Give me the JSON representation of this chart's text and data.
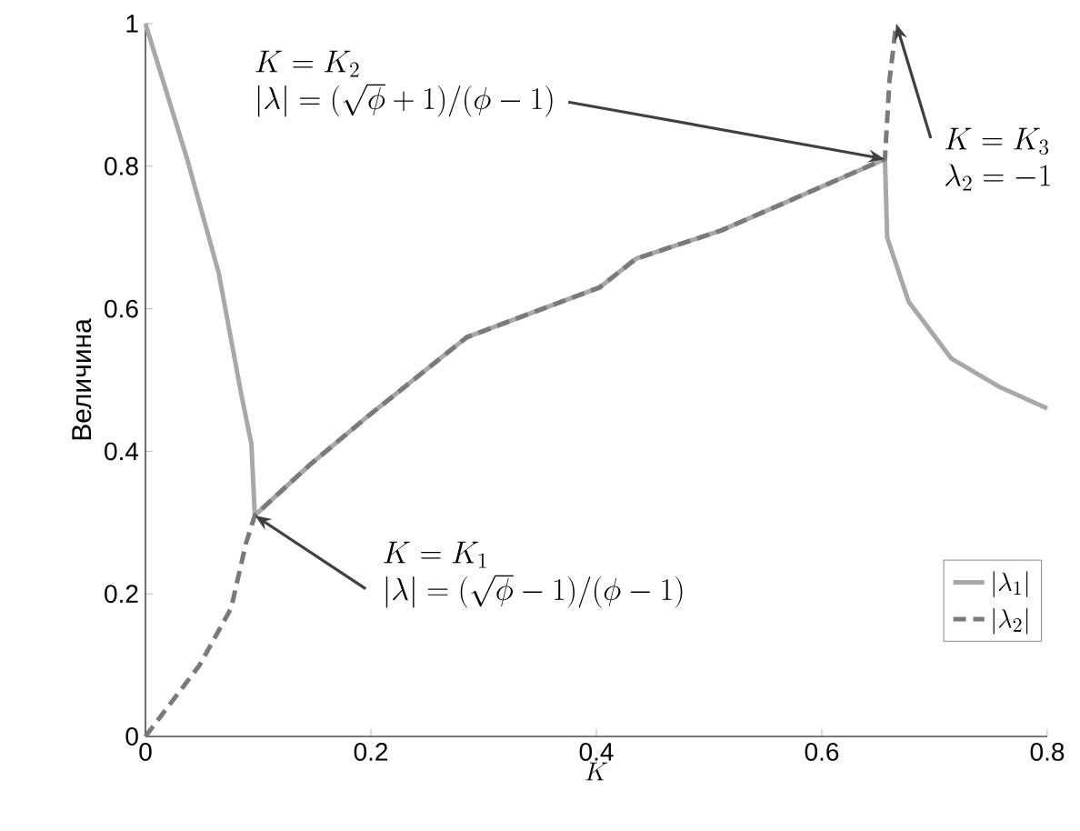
{
  "chart_data": {
    "type": "line",
    "xlabel": "K",
    "ylabel": "Величина",
    "xlim": [
      0,
      0.8
    ],
    "ylim": [
      0,
      1
    ],
    "xticks": [
      0,
      0.2,
      0.4,
      0.6,
      0.8
    ],
    "yticks": [
      0,
      0.2,
      0.4,
      0.6,
      0.8,
      1
    ],
    "legend": "bottom right",
    "series": [
      {
        "name": "|\\lambda_1|",
        "color": "#a8a8a8",
        "line_style": "solid",
        "x": [
          0,
          0.037,
          0.065,
          0.085,
          0.094,
          0.097,
          0.145,
          0.198,
          0.285,
          0.403,
          0.435,
          0.511,
          0.656,
          0.658,
          0.677,
          0.715,
          0.758,
          0.8
        ],
        "values": [
          1,
          0.81,
          0.65,
          0.48,
          0.41,
          0.31,
          0.38,
          0.45,
          0.56,
          0.63,
          0.67,
          0.71,
          0.81,
          0.7,
          0.61,
          0.53,
          0.49,
          0.46
        ]
      },
      {
        "name": "|\\lambda_2|",
        "color": "#7a7a7a",
        "line_style": "dashed",
        "x": [
          0,
          0.048,
          0.076,
          0.089,
          0.097,
          0.145,
          0.198,
          0.285,
          0.403,
          0.435,
          0.511,
          0.656,
          0.66,
          0.666
        ],
        "values": [
          0,
          0.1,
          0.18,
          0.27,
          0.31,
          0.38,
          0.45,
          0.56,
          0.63,
          0.67,
          0.71,
          0.81,
          0.92,
          1
        ]
      }
    ],
    "annotations": [
      {
        "text": "\\begin{array}{l}K=K_1\\\\|\\lambda|=(\\sqrt{\\phi}-1)/(\\phi-1)\\end{array}",
        "x": 0.097,
        "y": 0.31
      },
      {
        "text": "\\begin{array}{l}K=K_2\\\\|\\lambda|=(\\sqrt{\\phi}+1)/(\\phi-1)\\end{array}",
        "x": 0.656,
        "y": 0.81
      },
      {
        "text": "\\begin{array}{l}K=K_3\\\\\\lambda_2=-1\\end{array}",
        "x": 0.666,
        "y": 1
      }
    ]
  }
}
